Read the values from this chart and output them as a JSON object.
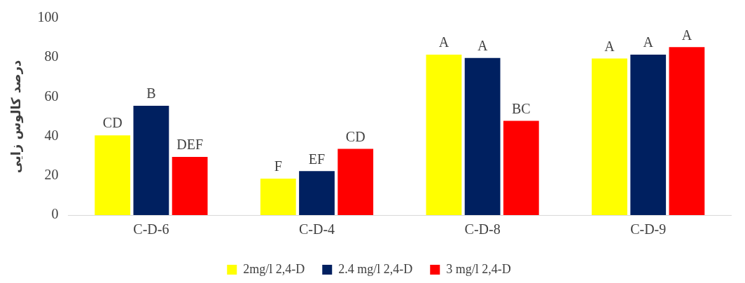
{
  "chart_data": {
    "type": "bar",
    "ylabel": "درصد کالوس زایی",
    "categories": [
      "C-D-6",
      "C-D-4",
      "C-D-8",
      "C-D-9"
    ],
    "series": [
      {
        "name": "2mg/l 2,4-D",
        "color": "#ffff00",
        "values": [
          40.5,
          18.5,
          81.5,
          79.5
        ],
        "value_labels": [
          "CD",
          "F",
          "A",
          "A"
        ]
      },
      {
        "name": "2.4 mg/l 2,4-D",
        "color": "#002060",
        "values": [
          55.5,
          22.3,
          79.8,
          81.5
        ],
        "value_labels": [
          "B",
          "EF",
          "A",
          "A"
        ]
      },
      {
        "name": "3 mg/l 2,4-D",
        "color": "#ff0000",
        "values": [
          29.5,
          33.6,
          47.9,
          85.3
        ],
        "value_labels": [
          "DEF",
          "CD",
          "BC",
          "A"
        ]
      }
    ],
    "ylim": [
      0,
      100
    ],
    "yticks": [
      0,
      20,
      40,
      60,
      80,
      100
    ],
    "grid": false,
    "legend": "bottom"
  }
}
